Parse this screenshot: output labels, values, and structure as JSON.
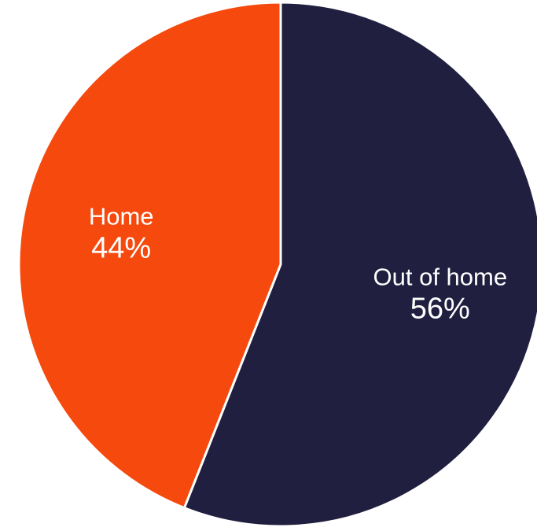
{
  "chart_data": {
    "type": "pie",
    "start_angle": "12 o'clock",
    "direction": "clockwise",
    "slices": [
      {
        "label": "Out of home",
        "value": 56,
        "value_label": "56%",
        "color": "#211f3f"
      },
      {
        "label": "Home",
        "value": 44,
        "value_label": "44%",
        "color": "#f5490d"
      }
    ]
  }
}
